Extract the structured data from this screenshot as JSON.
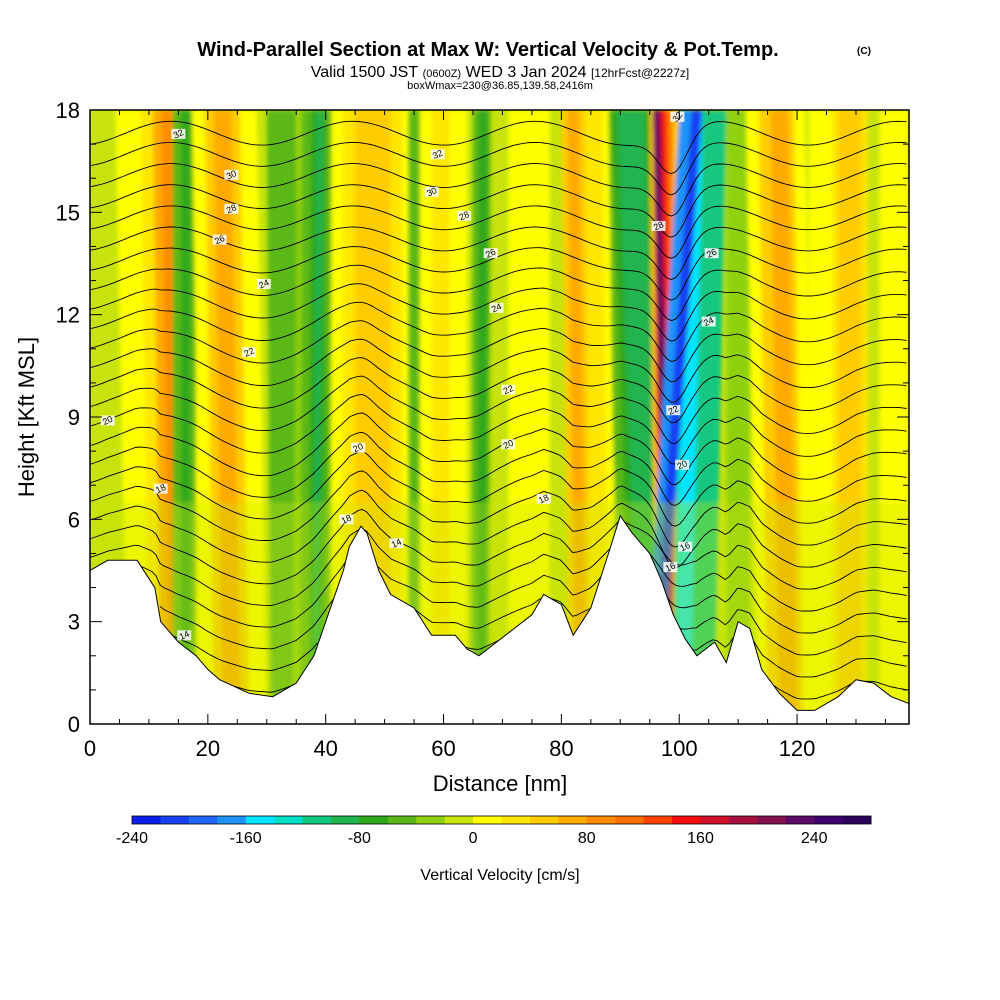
{
  "header": {
    "title": "Wind-Parallel Section at Max W: Vertical Velocity & Pot.Temp.",
    "copyright": "(C)",
    "valid_pre": "Valid 1500 JST",
    "valid_small": "(0600Z)",
    "valid_post": "WED 3 Jan 2024",
    "fcst": "[12hrFcst@2227z]",
    "box": "boxWmax=230@36.85,139.58,2416m"
  },
  "chart_data": {
    "type": "heatmap",
    "xlabel": "Distance [nm]",
    "ylabel": "Height [Kft MSL]",
    "xlim": [
      0,
      139
    ],
    "ylim": [
      0,
      18
    ],
    "x_ticks": [
      0,
      20,
      40,
      60,
      80,
      100,
      120
    ],
    "y_ticks": [
      0,
      3,
      6,
      9,
      12,
      15,
      18
    ],
    "terrain": {
      "distance_nm": [
        0,
        3,
        8,
        11,
        12,
        15,
        18,
        20,
        22,
        27,
        31,
        35,
        38,
        40,
        42,
        43,
        44,
        46,
        47,
        49,
        51,
        55,
        58,
        62,
        64,
        66,
        69,
        72,
        75,
        77,
        80,
        82,
        85,
        88,
        90,
        92,
        95,
        97,
        99,
        101,
        103,
        106,
        108,
        110,
        112,
        114,
        117,
        120,
        123,
        127,
        130,
        133,
        136,
        139
      ],
      "height_kft": [
        4.5,
        4.8,
        4.8,
        4.0,
        3.0,
        2.4,
        2.0,
        1.6,
        1.3,
        0.9,
        0.8,
        1.2,
        2.0,
        3.0,
        4.0,
        4.5,
        5.2,
        5.8,
        5.6,
        4.5,
        3.8,
        3.4,
        2.6,
        2.6,
        2.2,
        2.0,
        2.4,
        2.8,
        3.2,
        3.8,
        3.5,
        2.6,
        3.4,
        5.0,
        6.1,
        5.6,
        5.0,
        4.2,
        3.2,
        2.5,
        2.0,
        2.4,
        1.8,
        3.0,
        2.8,
        1.6,
        0.9,
        0.4,
        0.4,
        0.8,
        1.3,
        1.2,
        0.8,
        0.6
      ]
    },
    "vertical_velocity": {
      "label": "Vertical Velocity [cm/s]",
      "unit": "cm/s",
      "scale": {
        "min": -240,
        "max": 280,
        "step": 20,
        "tick_values": [
          -240,
          -160,
          -80,
          0,
          80,
          160,
          240
        ],
        "tick_labels": [
          "-240",
          "-160",
          "-80",
          "0",
          "80",
          "160",
          "240"
        ],
        "colors": [
          "#0a1eef",
          "#1741f5",
          "#1e66f8",
          "#1e93fa",
          "#00e5ff",
          "#00e0c8",
          "#12c87f",
          "#20b44f",
          "#2fa71c",
          "#5cb817",
          "#8fd10d",
          "#c9e40b",
          "#ffff00",
          "#ffe600",
          "#ffcc00",
          "#ffaa00",
          "#ff8c00",
          "#ff6e00",
          "#ff4500",
          "#f50d0d",
          "#d10f2d",
          "#a8103f",
          "#82104f",
          "#5c0a66",
          "#3f006f",
          "#2a005a"
        ]
      },
      "max_value": 230,
      "max_at": "36.85,139.58,2416m"
    },
    "potential_temperature": {
      "contour_interval": 1,
      "labeled_values": [
        14,
        16,
        18,
        20,
        22,
        24,
        26,
        28,
        30,
        32
      ]
    }
  }
}
